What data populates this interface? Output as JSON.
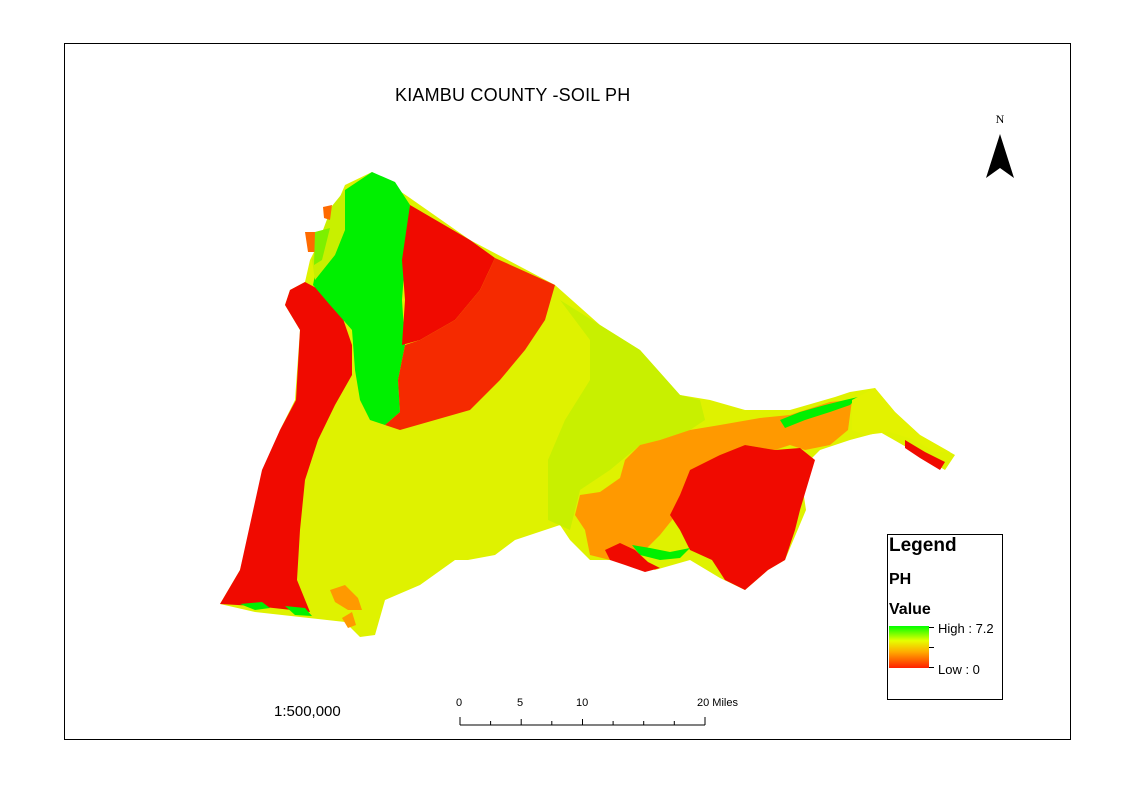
{
  "title": "KIAMBU COUNTY -SOIL PH",
  "north_arrow": {
    "label": "N"
  },
  "legend": {
    "title": "Legend",
    "layer": "PH",
    "field": "Value",
    "high_label": "High : 7.2",
    "low_label": "Low : 0",
    "ramp_colors": [
      "#00ff00",
      "#e6ff00",
      "#ffaa00",
      "#ff2000"
    ]
  },
  "scale_text": "1:500,000",
  "scale_bar": {
    "labels": [
      "0",
      "5",
      "10",
      "20 Miles"
    ]
  },
  "map_colors": {
    "red": "#f00a00",
    "red_orange": "#f52a00",
    "orange": "#ff9900",
    "yellow": "#dff200",
    "yellow_green": "#c8f000",
    "green": "#00f000"
  }
}
